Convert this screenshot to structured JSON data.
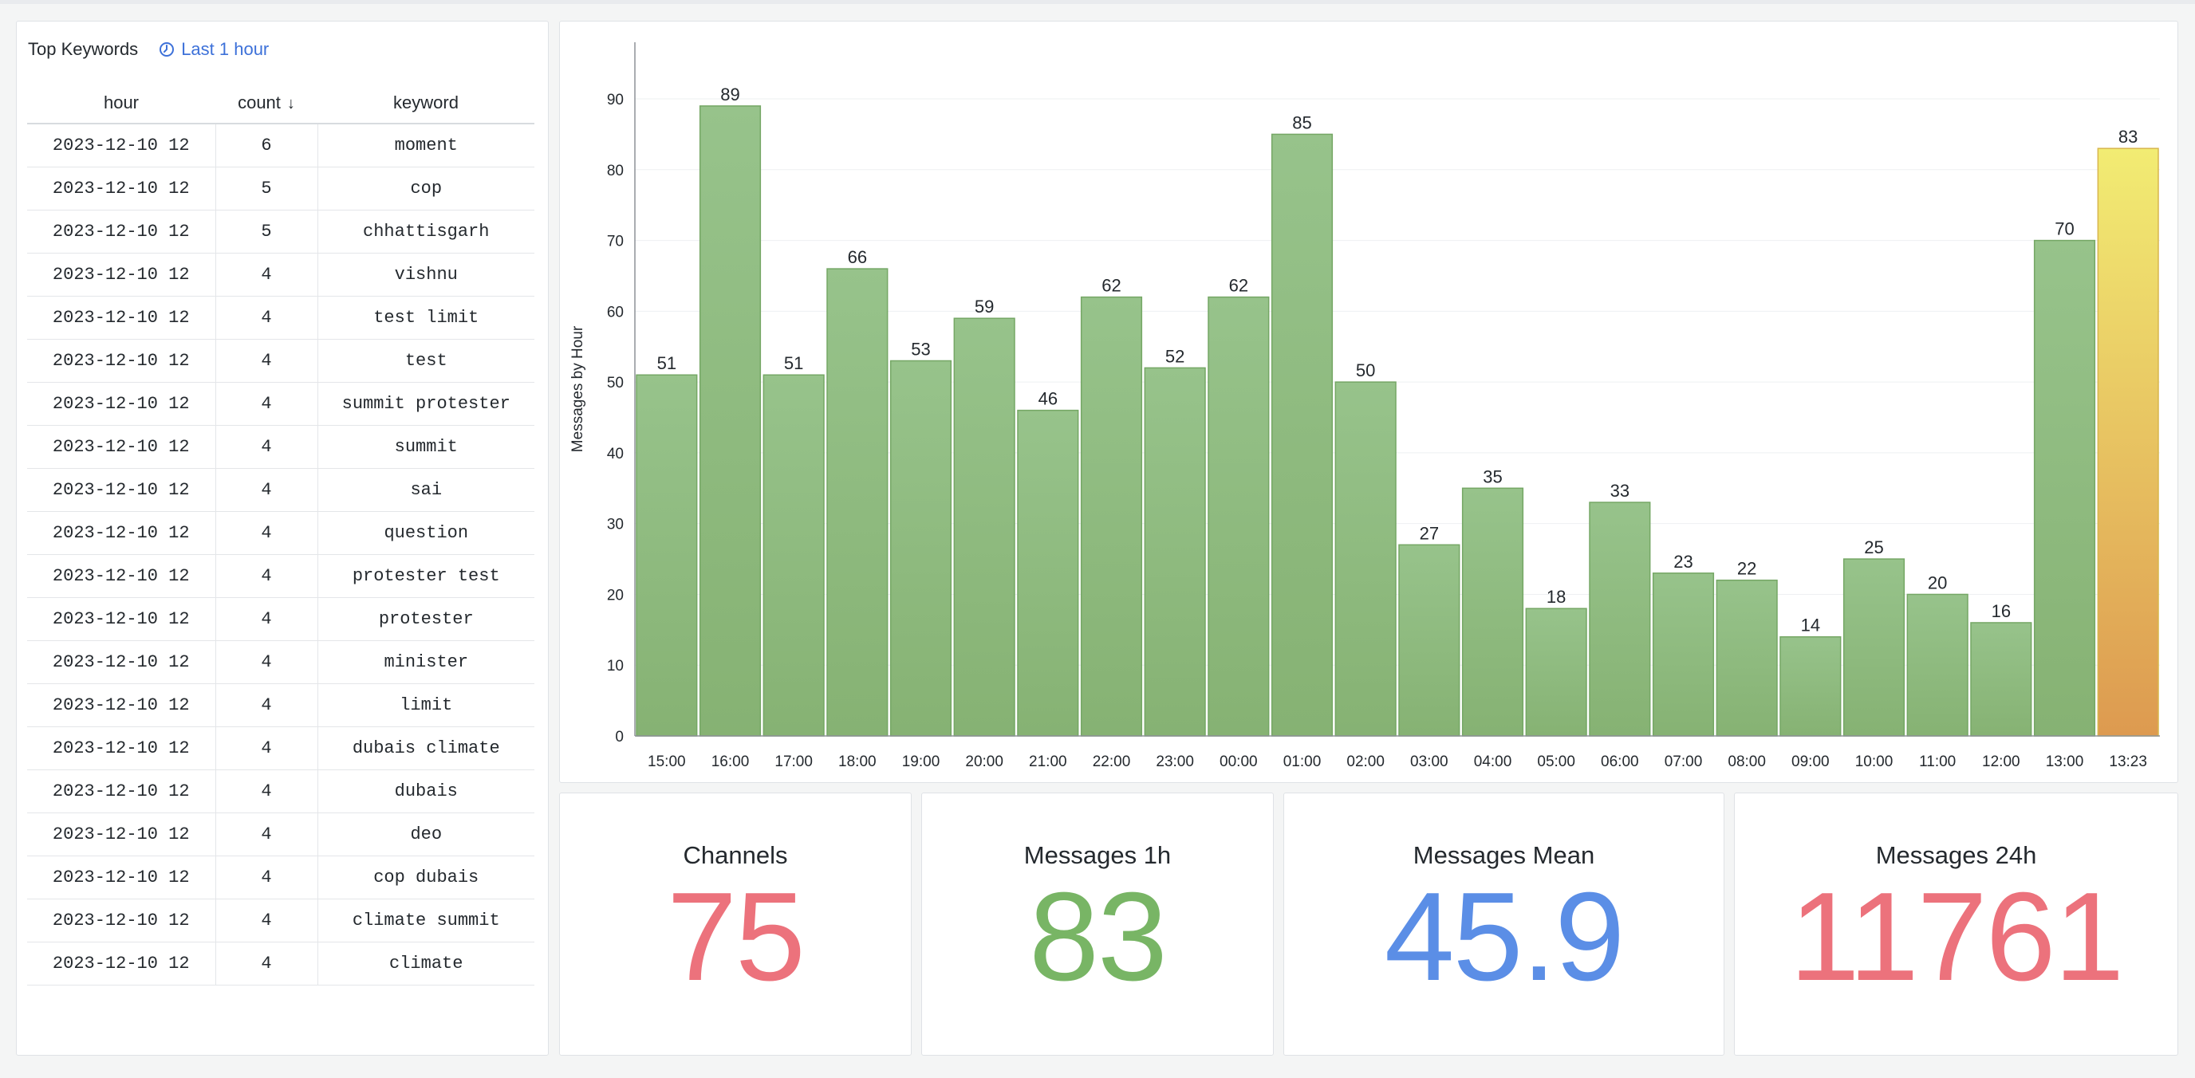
{
  "keywords_panel": {
    "title": "Top Keywords",
    "time_range": "Last 1 hour",
    "icon": "clock-icon",
    "columns": [
      "hour",
      "count",
      "keyword"
    ],
    "sort_icon": "arrow-down-icon",
    "rows": [
      [
        "2023-12-10 12",
        "6",
        "moment"
      ],
      [
        "2023-12-10 12",
        "5",
        "cop"
      ],
      [
        "2023-12-10 12",
        "5",
        "chhattisgarh"
      ],
      [
        "2023-12-10 12",
        "4",
        "vishnu"
      ],
      [
        "2023-12-10 12",
        "4",
        "test limit"
      ],
      [
        "2023-12-10 12",
        "4",
        "test"
      ],
      [
        "2023-12-10 12",
        "4",
        "summit protester"
      ],
      [
        "2023-12-10 12",
        "4",
        "summit"
      ],
      [
        "2023-12-10 12",
        "4",
        "sai"
      ],
      [
        "2023-12-10 12",
        "4",
        "question"
      ],
      [
        "2023-12-10 12",
        "4",
        "protester test"
      ],
      [
        "2023-12-10 12",
        "4",
        "protester"
      ],
      [
        "2023-12-10 12",
        "4",
        "minister"
      ],
      [
        "2023-12-10 12",
        "4",
        "limit"
      ],
      [
        "2023-12-10 12",
        "4",
        "dubais climate"
      ],
      [
        "2023-12-10 12",
        "4",
        "dubais"
      ],
      [
        "2023-12-10 12",
        "4",
        "deo"
      ],
      [
        "2023-12-10 12",
        "4",
        "cop dubais"
      ],
      [
        "2023-12-10 12",
        "4",
        "climate summit"
      ],
      [
        "2023-12-10 12",
        "4",
        "climate"
      ]
    ]
  },
  "chart_data": {
    "type": "bar",
    "title": "",
    "xlabel": "",
    "ylabel": "Messages by Hour",
    "ylim": [
      0,
      98
    ],
    "yticks": [
      0,
      10,
      20,
      30,
      40,
      50,
      60,
      70,
      80,
      90
    ],
    "grid": true,
    "categories": [
      "15:00",
      "16:00",
      "17:00",
      "18:00",
      "19:00",
      "20:00",
      "21:00",
      "22:00",
      "23:00",
      "00:00",
      "01:00",
      "02:00",
      "03:00",
      "04:00",
      "05:00",
      "06:00",
      "07:00",
      "08:00",
      "09:00",
      "10:00",
      "11:00",
      "12:00",
      "13:00",
      "13:23"
    ],
    "values": [
      51,
      89,
      51,
      66,
      53,
      59,
      46,
      62,
      52,
      62,
      85,
      50,
      27,
      35,
      18,
      33,
      23,
      22,
      14,
      25,
      20,
      16,
      70,
      83
    ],
    "colors": {
      "bar_top": "#97c38b",
      "bar_bottom": "#86b273",
      "bar_stroke": "#75a765",
      "last_bar_top": "#f2ec73",
      "last_bar_bottom": "#dd9a50",
      "last_bar_stroke": "#d8b64c"
    }
  },
  "stats": [
    {
      "label": "Channels",
      "value": "75",
      "color": "#ec727c"
    },
    {
      "label": "Messages 1h",
      "value": "83",
      "color": "#78b565"
    },
    {
      "label": "Messages Mean",
      "value": "45.9",
      "color": "#5b8ee6"
    },
    {
      "label": "Messages 24h",
      "value": "11761",
      "color": "#ec727c"
    }
  ]
}
